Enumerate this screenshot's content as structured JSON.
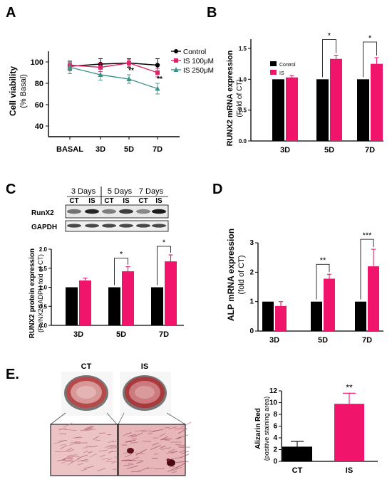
{
  "colors": {
    "control": "#000000",
    "is100": "#e0246b",
    "is250": "#3f9489",
    "ct": "#000000",
    "is": "#f0146a",
    "plate_red": "#c85a5a",
    "tissue": "#e8b9b9"
  },
  "panels": {
    "a": "A",
    "b": "B",
    "c": "C",
    "d": "D",
    "e": "E."
  },
  "chart_data": [
    {
      "id": "A",
      "type": "line",
      "categories": [
        "BASAL",
        "3D",
        "5D",
        "7D"
      ],
      "ylabel": "Cell viability",
      "ylabel2": "(% Basal)",
      "ylim": [
        30,
        110
      ],
      "yticks": [
        40,
        60,
        80,
        100
      ],
      "series": [
        {
          "name": "Control",
          "marker": "circle",
          "values": [
            96,
            98,
            99,
            97
          ],
          "errors": [
            4,
            5,
            4,
            6
          ]
        },
        {
          "name": "IS 100μM",
          "marker": "square",
          "values": [
            97,
            95,
            99,
            90
          ],
          "errors": [
            4,
            4,
            3,
            4
          ]
        },
        {
          "name": "IS 250μM",
          "marker": "triangle",
          "values": [
            95,
            88,
            84,
            75
          ],
          "errors": [
            6,
            5,
            4,
            5
          ]
        }
      ],
      "annotations": [
        {
          "cat": "5D",
          "text": "**"
        },
        {
          "cat": "7D",
          "text": "**"
        }
      ]
    },
    {
      "id": "B",
      "type": "bar",
      "categories": [
        "3D",
        "5D",
        "7D"
      ],
      "ylabel": "RUNX2 mRNA expression",
      "ylabel2": "(Fold of CT)",
      "ylim": [
        0,
        1.65
      ],
      "yticks": [
        "0.0",
        "0.5",
        "1.0",
        "1.5"
      ],
      "series": [
        {
          "name": "Control",
          "values": [
            1.0,
            1.0,
            1.0
          ],
          "errors": [
            0,
            0,
            0
          ]
        },
        {
          "name": "IS",
          "values": [
            1.03,
            1.33,
            1.25
          ],
          "errors": [
            0.03,
            0.06,
            0.1
          ]
        }
      ],
      "sig": [
        {
          "cat": "5D",
          "text": "*"
        },
        {
          "cat": "7D",
          "text": "*"
        }
      ]
    },
    {
      "id": "C",
      "type": "bar",
      "categories": [
        "3D",
        "5D",
        "7D"
      ],
      "ylabel": "RUNX2 protein expression",
      "ylabel2": "(RUNX2GADPH fold of CT)",
      "ylim": [
        0,
        2
      ],
      "yticks": [
        "0.0",
        "0.5",
        "1.0",
        "1.5",
        "2.0"
      ],
      "series": [
        {
          "name": "CT",
          "values": [
            1.0,
            1.0,
            1.0
          ],
          "errors": [
            0,
            0,
            0
          ]
        },
        {
          "name": "IS",
          "values": [
            1.18,
            1.42,
            1.68
          ],
          "errors": [
            0.06,
            0.12,
            0.17
          ]
        }
      ],
      "sig": [
        {
          "cat": "5D",
          "text": "*"
        },
        {
          "cat": "7D",
          "text": "*"
        }
      ]
    },
    {
      "id": "D",
      "type": "bar",
      "categories": [
        "3D",
        "5D",
        "7D"
      ],
      "ylabel": "ALP mRNA expression",
      "ylabel2": "(fold of CT)",
      "ylim": [
        0,
        3
      ],
      "yticks": [
        "0",
        "1",
        "2",
        "3"
      ],
      "series": [
        {
          "name": "CT",
          "values": [
            1.0,
            1.0,
            1.0
          ],
          "errors": [
            0,
            0,
            0
          ]
        },
        {
          "name": "IS",
          "values": [
            0.85,
            1.78,
            2.2
          ],
          "errors": [
            0.15,
            0.15,
            0.58
          ]
        }
      ],
      "sig": [
        {
          "cat": "5D",
          "text": "**"
        },
        {
          "cat": "7D",
          "text": "***"
        }
      ]
    },
    {
      "id": "E",
      "type": "bar",
      "categories": [
        "CT",
        "IS"
      ],
      "ylabel": "Alizarin Red",
      "ylabel2": "(positive staining area)",
      "ylim": [
        0,
        12
      ],
      "yticks": [
        "0",
        "2",
        "4",
        "6",
        "8",
        "10",
        "12"
      ],
      "series": [
        {
          "name": "value",
          "values": [
            2.5,
            9.8
          ],
          "errors": [
            0.9,
            1.8
          ]
        }
      ],
      "sig": [
        {
          "cat": "IS",
          "text": "**"
        }
      ]
    }
  ],
  "blot": {
    "day_labels": [
      "3 Days",
      "5 Days",
      "7 Days"
    ],
    "lane_labels": [
      "CT",
      "IS",
      "CT",
      "IS",
      "CT",
      "IS"
    ],
    "row_labels": [
      "RunX2",
      "GAPDH"
    ]
  },
  "stain": {
    "labels": [
      "CT",
      "IS"
    ]
  }
}
